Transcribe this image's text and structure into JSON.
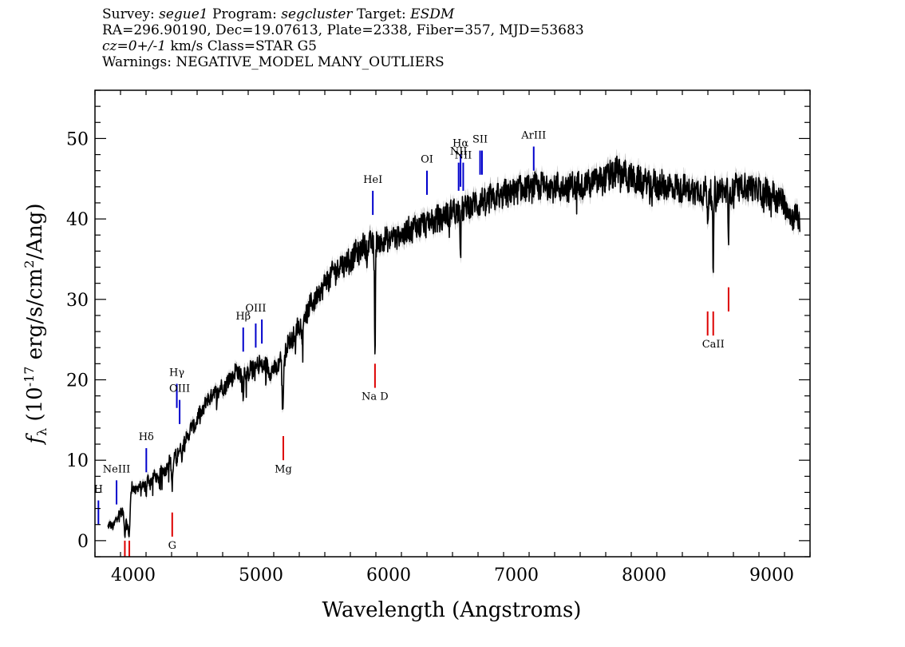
{
  "header": {
    "line1": {
      "survey_label": "Survey:",
      "survey": "segue1",
      "program_label": "Program:",
      "program": "segcluster",
      "target_label": "Target:",
      "target": "ESDM"
    },
    "line2": "RA=296.90190, Dec=19.07613, Plate=2338, Fiber=357, MJD=53683",
    "line3": {
      "cz": "cz=0+/-1",
      "rest": " km/s Class=STAR G5"
    },
    "line4": "Warnings: NEGATIVE_MODEL MANY_OUTLIERS"
  },
  "colors": {
    "spectrum": "#000000",
    "error_band": "#b0b0b0",
    "emission": "#0000cc",
    "absorption": "#dd0000"
  },
  "chart_data": {
    "type": "line",
    "xlabel": "Wavelength (Angstroms)",
    "ylabel": {
      "main": "f",
      "sub": "λ",
      "units_pre": " (10",
      "exp1": "-17",
      "units_mid": " erg/s/cm",
      "exp2": "2",
      "units_post": "/Ang)"
    },
    "xlim": [
      3700,
      9300
    ],
    "ylim": [
      -2,
      56
    ],
    "x_ticks": [
      4000,
      5000,
      6000,
      7000,
      8000,
      9000
    ],
    "y_ticks": [
      0,
      10,
      20,
      30,
      40,
      50
    ],
    "x_tick_labels": [
      "4000",
      "5000",
      "6000",
      "7000",
      "8000",
      "9000"
    ],
    "y_tick_labels": [
      "0",
      "10",
      "20",
      "30",
      "40",
      "50"
    ],
    "x_minor_step": 200,
    "y_minor_step": 2,
    "spectrum_anchors": [
      [
        3800,
        1.5
      ],
      [
        3870,
        2.5
      ],
      [
        3900,
        4.0
      ],
      [
        3930,
        3.0
      ],
      [
        3960,
        2.0
      ],
      [
        3990,
        6.5
      ],
      [
        4050,
        6.5
      ],
      [
        4100,
        7.5
      ],
      [
        4200,
        8.0
      ],
      [
        4300,
        10.0
      ],
      [
        4400,
        12.5
      ],
      [
        4500,
        15.0
      ],
      [
        4600,
        18.0
      ],
      [
        4700,
        19.0
      ],
      [
        4800,
        21.0
      ],
      [
        4900,
        21.0
      ],
      [
        5000,
        22.0
      ],
      [
        5100,
        21.0
      ],
      [
        5200,
        24.0
      ],
      [
        5300,
        27.0
      ],
      [
        5400,
        29.5
      ],
      [
        5500,
        32.0
      ],
      [
        5600,
        34.0
      ],
      [
        5700,
        35.0
      ],
      [
        5800,
        36.5
      ],
      [
        5900,
        37.0
      ],
      [
        6000,
        37.5
      ],
      [
        6100,
        38.0
      ],
      [
        6200,
        39.0
      ],
      [
        6300,
        39.5
      ],
      [
        6400,
        40.0
      ],
      [
        6500,
        41.0
      ],
      [
        6600,
        41.5
      ],
      [
        6700,
        42.0
      ],
      [
        6800,
        42.5
      ],
      [
        6900,
        43.0
      ],
      [
        7000,
        43.5
      ],
      [
        7200,
        44.0
      ],
      [
        7400,
        44.0
      ],
      [
        7600,
        44.5
      ],
      [
        7800,
        46.0
      ],
      [
        7900,
        45.0
      ],
      [
        8000,
        44.5
      ],
      [
        8200,
        44.0
      ],
      [
        8400,
        43.5
      ],
      [
        8600,
        43.5
      ],
      [
        8800,
        44.0
      ],
      [
        9000,
        43.0
      ],
      [
        9100,
        42.0
      ],
      [
        9150,
        40.5
      ],
      [
        9220,
        40.0
      ]
    ],
    "absorption_dips": [
      {
        "x": 3934,
        "depth": 2.5,
        "width": 6
      },
      {
        "x": 3969,
        "depth": 2.5,
        "width": 6
      },
      {
        "x": 4102,
        "depth": 2.0,
        "width": 6
      },
      {
        "x": 4305,
        "depth": 3.0,
        "width": 8
      },
      {
        "x": 4340,
        "depth": 2.0,
        "width": 6
      },
      {
        "x": 4383,
        "depth": 2.0,
        "width": 5
      },
      {
        "x": 4861,
        "depth": 3.0,
        "width": 6
      },
      {
        "x": 5170,
        "depth": 7.0,
        "width": 8
      },
      {
        "x": 5270,
        "depth": 3.0,
        "width": 5
      },
      {
        "x": 5328,
        "depth": 3.0,
        "width": 5
      },
      {
        "x": 5893,
        "depth": 13.0,
        "width": 5
      },
      {
        "x": 6563,
        "depth": 6.0,
        "width": 5
      },
      {
        "x": 8498,
        "depth": 5.0,
        "width": 5
      },
      {
        "x": 8542,
        "depth": 12.0,
        "width": 5
      },
      {
        "x": 8662,
        "depth": 8.0,
        "width": 5
      }
    ],
    "emission_lines": [
      {
        "label": "H",
        "x": 3727,
        "y_bottom": 2,
        "y_top": 5,
        "color": "#0000cc",
        "label_y": 6
      },
      {
        "label": "NeIII",
        "x": 3869,
        "y_bottom": 4.5,
        "y_top": 7.5,
        "color": "#0000cc",
        "label_y": 8.5
      },
      {
        "label": "Hδ",
        "x": 4102,
        "y_bottom": 8.5,
        "y_top": 11.5,
        "color": "#0000cc",
        "label_y": 12.5
      },
      {
        "label": "Hγ",
        "x": 4341,
        "y_bottom": 16.5,
        "y_top": 19.5,
        "color": "#0000cc",
        "label_y": 20.5
      },
      {
        "label": "OIII",
        "x": 4363,
        "y_bottom": 14.5,
        "y_top": 17.5,
        "color": "#0000cc",
        "label_y": 18.5
      },
      {
        "label": "Hβ",
        "x": 4861,
        "y_bottom": 23.5,
        "y_top": 26.5,
        "color": "#0000cc",
        "label_y": 27.5
      },
      {
        "label": "OIII",
        "x": 4959,
        "y_bottom": 24,
        "y_top": 27,
        "color": "#0000cc",
        "label_y": 28.5
      },
      {
        "label": "",
        "x": 5007,
        "y_bottom": 24.5,
        "y_top": 27.5,
        "color": "#0000cc",
        "label_y": 28.5
      },
      {
        "label": "HeI",
        "x": 5876,
        "y_bottom": 40.5,
        "y_top": 43.5,
        "color": "#0000cc",
        "label_y": 44.5
      },
      {
        "label": "OI",
        "x": 6300,
        "y_bottom": 43,
        "y_top": 46,
        "color": "#0000cc",
        "label_y": 47
      },
      {
        "label": "NII",
        "x": 6548,
        "y_bottom": 43.5,
        "y_top": 47,
        "color": "#0000cc",
        "label_y": 48
      },
      {
        "label": "Hα",
        "x": 6563,
        "y_bottom": 44,
        "y_top": 48,
        "color": "#0000cc",
        "label_y": 49
      },
      {
        "label": "NII",
        "x": 6584,
        "y_bottom": 43.5,
        "y_top": 47,
        "color": "#0000cc",
        "label_y": 47.5
      },
      {
        "label": "SII",
        "x": 6716,
        "y_bottom": 45.5,
        "y_top": 48.5,
        "color": "#0000cc",
        "label_y": 49.5
      },
      {
        "label": "",
        "x": 6731,
        "y_bottom": 45.5,
        "y_top": 48.5,
        "color": "#0000cc",
        "label_y": 49.5
      },
      {
        "label": "ArIII",
        "x": 7136,
        "y_bottom": 46,
        "y_top": 49,
        "color": "#0000cc",
        "label_y": 50
      }
    ],
    "absorption_lines": [
      {
        "label": "",
        "x": 3934,
        "y_bottom": -2,
        "y_top": 0,
        "color": "#dd0000",
        "label_y": -3
      },
      {
        "label": "",
        "x": 3969,
        "y_bottom": -2,
        "y_top": 0,
        "color": "#dd0000",
        "label_y": -3
      },
      {
        "label": "G",
        "x": 4305,
        "y_bottom": 0.5,
        "y_top": 3.5,
        "color": "#dd0000",
        "label_y": -1
      },
      {
        "label": "Mg",
        "x": 5175,
        "y_bottom": 10,
        "y_top": 13,
        "color": "#dd0000",
        "label_y": 8.5
      },
      {
        "label": "Na D",
        "x": 5893,
        "y_bottom": 19,
        "y_top": 22,
        "color": "#dd0000",
        "label_y": 17.5
      },
      {
        "label": "",
        "x": 8498,
        "y_bottom": 25.5,
        "y_top": 28.5,
        "color": "#dd0000",
        "label_y": 24
      },
      {
        "label": "CaII",
        "x": 8542,
        "y_bottom": 25.5,
        "y_top": 28.5,
        "color": "#dd0000",
        "label_y": 24
      },
      {
        "label": "",
        "x": 8662,
        "y_bottom": 28.5,
        "y_top": 31.5,
        "color": "#dd0000",
        "label_y": 27
      }
    ]
  }
}
